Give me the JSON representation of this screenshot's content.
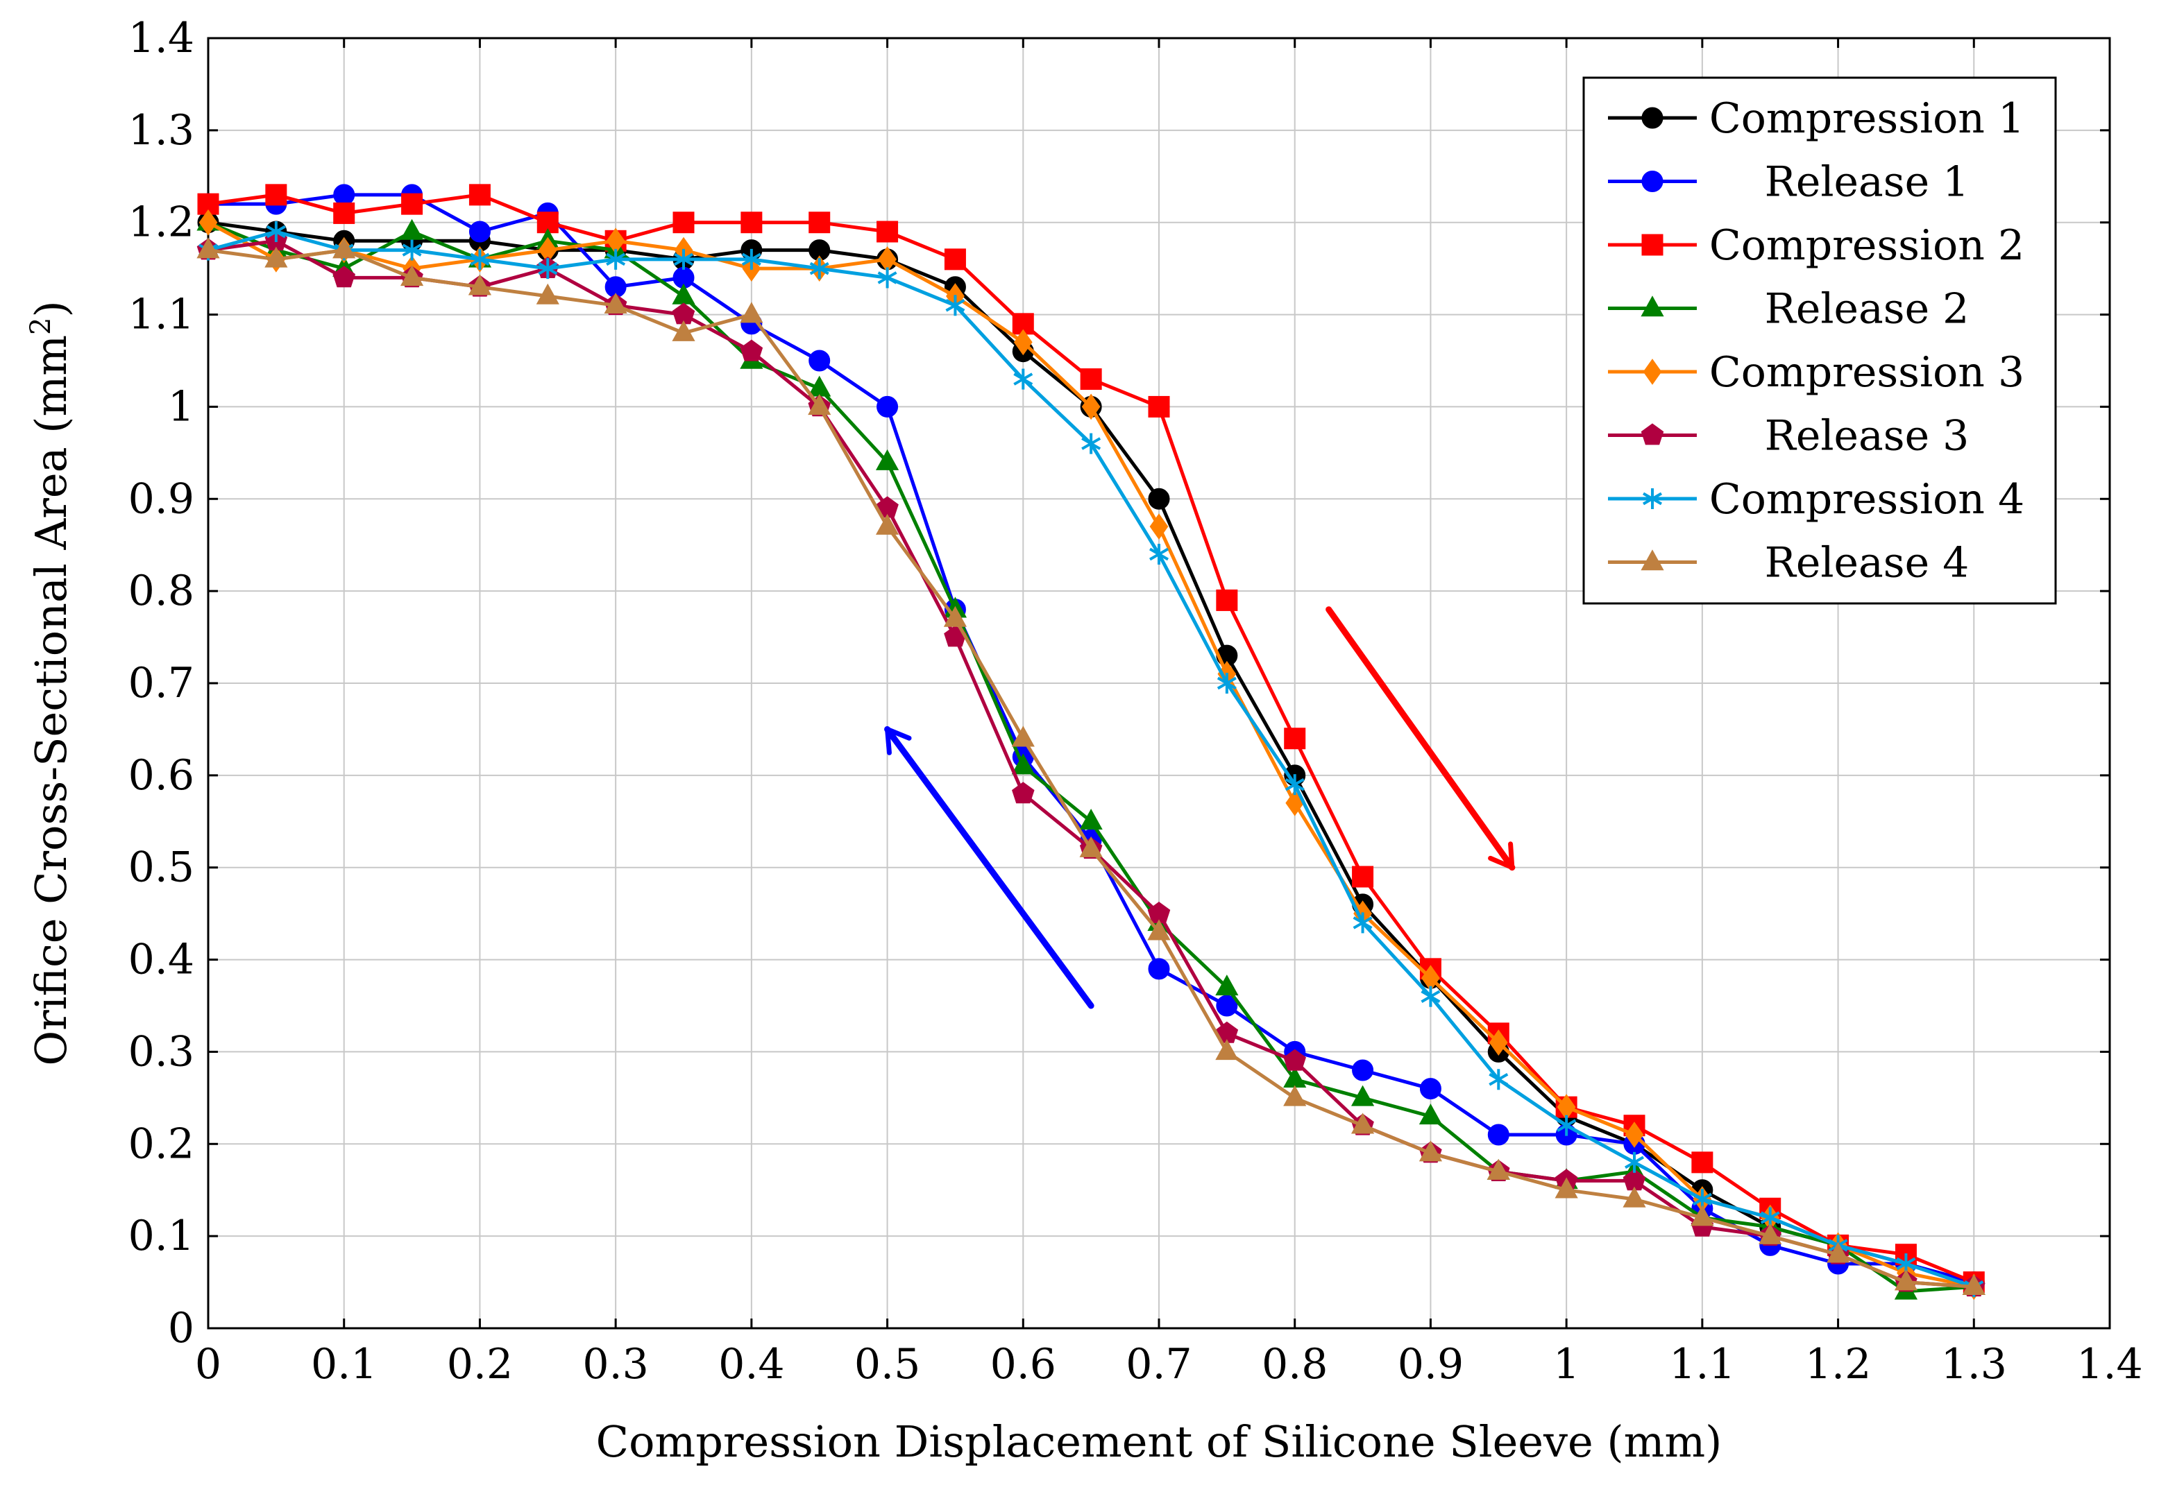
{
  "chart_data": {
    "type": "line",
    "title": "",
    "xlabel": "Compression Displacement of Silicone Sleeve (mm)",
    "ylabel_main": "Orifice Cross-Sectional Area (mm",
    "ylabel_sup": "2",
    "ylabel_close": ")",
    "xlim": [
      0,
      1.4
    ],
    "ylim": [
      0,
      1.4
    ],
    "xticks": [
      0,
      0.1,
      0.2,
      0.3,
      0.4,
      0.5,
      0.6,
      0.7,
      0.8,
      0.9,
      1,
      1.1,
      1.2,
      1.3,
      1.4
    ],
    "yticks": [
      0,
      0.1,
      0.2,
      0.3,
      0.4,
      0.5,
      0.6,
      0.7,
      0.8,
      0.9,
      1,
      1.1,
      1.2,
      1.3,
      1.4
    ],
    "xtick_labels": [
      "0",
      "0.1",
      "0.2",
      "0.3",
      "0.4",
      "0.5",
      "0.6",
      "0.7",
      "0.8",
      "0.9",
      "1",
      "1.1",
      "1.2",
      "1.3",
      "1.4"
    ],
    "ytick_labels": [
      "0",
      "0.1",
      "0.2",
      "0.3",
      "0.4",
      "0.5",
      "0.6",
      "0.7",
      "0.8",
      "0.9",
      "1",
      "1.1",
      "1.2",
      "1.3",
      "1.4"
    ],
    "grid": true,
    "legend_position": "top-right",
    "x": [
      0,
      0.05,
      0.1,
      0.15,
      0.2,
      0.25,
      0.3,
      0.35,
      0.4,
      0.45,
      0.5,
      0.55,
      0.6,
      0.65,
      0.7,
      0.75,
      0.8,
      0.85,
      0.9,
      0.95,
      1,
      1.05,
      1.1,
      1.15,
      1.2,
      1.25,
      1.3
    ],
    "series": [
      {
        "name": "Compression 1",
        "color": "#000000",
        "marker": "circle",
        "values": [
          1.2,
          1.19,
          1.18,
          1.18,
          1.18,
          1.17,
          1.17,
          1.16,
          1.17,
          1.17,
          1.16,
          1.13,
          1.06,
          1.0,
          0.9,
          0.73,
          0.6,
          0.46,
          0.38,
          0.3,
          0.23,
          0.2,
          0.15,
          0.11,
          0.09,
          0.07,
          0.05
        ]
      },
      {
        "name": "Release 1",
        "color": "#0000ff",
        "marker": "circle",
        "values": [
          1.22,
          1.22,
          1.23,
          1.23,
          1.19,
          1.21,
          1.13,
          1.14,
          1.09,
          1.05,
          1.0,
          0.78,
          0.62,
          0.53,
          0.39,
          0.35,
          0.3,
          0.28,
          0.26,
          0.21,
          0.21,
          0.2,
          0.13,
          0.09,
          0.07,
          0.07,
          0.05
        ]
      },
      {
        "name": "Compression 2",
        "color": "#ff0000",
        "marker": "square",
        "values": [
          1.22,
          1.23,
          1.21,
          1.22,
          1.23,
          1.2,
          1.18,
          1.2,
          1.2,
          1.2,
          1.19,
          1.16,
          1.09,
          1.03,
          1.0,
          0.79,
          0.64,
          0.49,
          0.39,
          0.32,
          0.24,
          0.22,
          0.18,
          0.13,
          0.09,
          0.08,
          0.05
        ]
      },
      {
        "name": "Release 2",
        "color": "#008000",
        "marker": "triangle",
        "values": [
          1.2,
          1.17,
          1.15,
          1.19,
          1.16,
          1.18,
          1.17,
          1.12,
          1.05,
          1.02,
          0.94,
          0.78,
          0.61,
          0.55,
          0.44,
          0.37,
          0.27,
          0.25,
          0.23,
          0.17,
          0.16,
          0.17,
          0.12,
          0.11,
          0.09,
          0.04,
          0.045
        ]
      },
      {
        "name": "Compression 3",
        "color": "#ff8000",
        "marker": "diamond",
        "values": [
          1.2,
          1.16,
          1.17,
          1.15,
          1.16,
          1.17,
          1.18,
          1.17,
          1.15,
          1.15,
          1.16,
          1.12,
          1.07,
          1.0,
          0.87,
          0.71,
          0.57,
          0.45,
          0.38,
          0.31,
          0.24,
          0.21,
          0.14,
          0.12,
          0.09,
          0.06,
          0.045
        ]
      },
      {
        "name": "Release 3",
        "color": "#b00040",
        "marker": "pentagon",
        "values": [
          1.17,
          1.18,
          1.14,
          1.14,
          1.13,
          1.15,
          1.11,
          1.1,
          1.06,
          1.0,
          0.89,
          0.75,
          0.58,
          0.52,
          0.45,
          0.32,
          0.29,
          0.22,
          0.19,
          0.17,
          0.16,
          0.16,
          0.11,
          0.1,
          0.08,
          0.05,
          0.045
        ]
      },
      {
        "name": "Compression 4",
        "color": "#00a0e0",
        "marker": "asterisk",
        "values": [
          1.17,
          1.19,
          1.17,
          1.17,
          1.16,
          1.15,
          1.16,
          1.16,
          1.16,
          1.15,
          1.14,
          1.11,
          1.03,
          0.96,
          0.84,
          0.7,
          0.59,
          0.44,
          0.36,
          0.27,
          0.22,
          0.18,
          0.14,
          0.12,
          0.09,
          0.07,
          0.045
        ]
      },
      {
        "name": "Release 4",
        "color": "#bf8040",
        "marker": "triangle",
        "values": [
          1.17,
          1.16,
          1.17,
          1.14,
          1.13,
          1.12,
          1.11,
          1.08,
          1.1,
          1.0,
          0.87,
          0.77,
          0.64,
          0.52,
          0.43,
          0.3,
          0.25,
          0.22,
          0.19,
          0.17,
          0.15,
          0.14,
          0.12,
          0.1,
          0.08,
          0.05,
          0.045
        ]
      }
    ],
    "annotations": [
      {
        "name": "compression-direction-arrow",
        "color": "#ff0000",
        "from": [
          0.825,
          0.78
        ],
        "to": [
          0.96,
          0.5
        ]
      },
      {
        "name": "release-direction-arrow",
        "color": "#0000ff",
        "from": [
          0.65,
          0.35
        ],
        "to": [
          0.5,
          0.65
        ]
      }
    ]
  }
}
